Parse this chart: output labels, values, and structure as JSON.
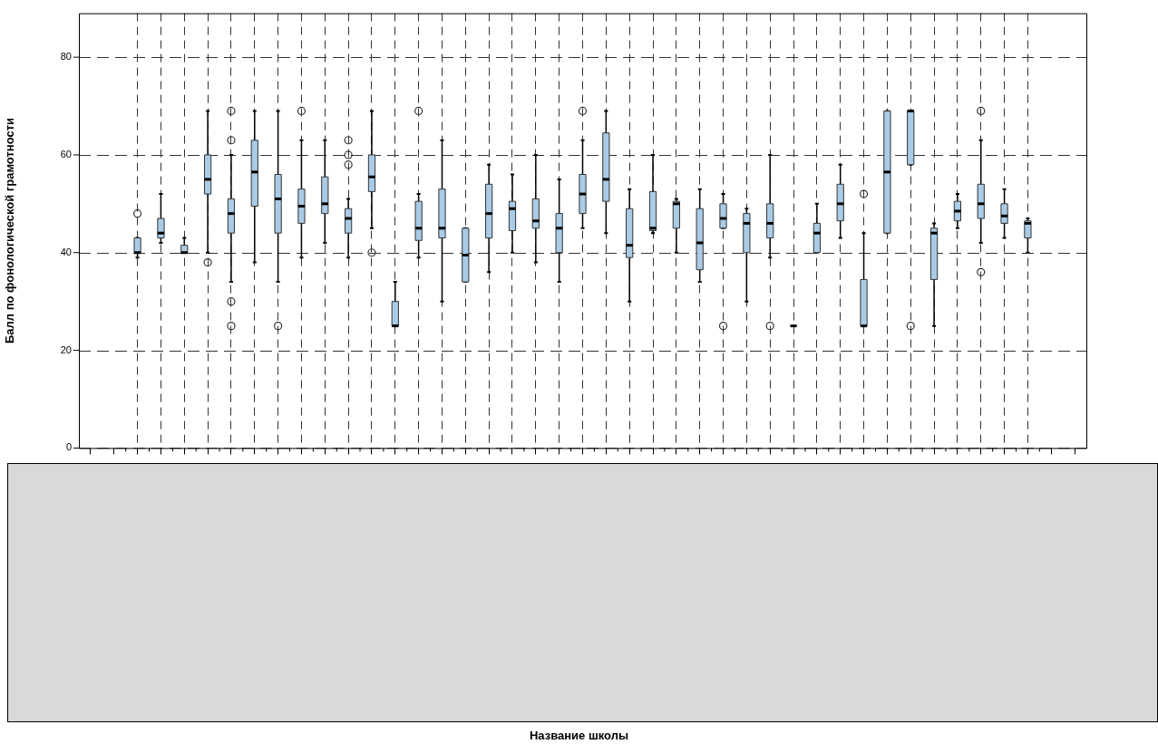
{
  "chart_data": {
    "type": "box",
    "annotations": [
      "Название школы"
    ],
    "ylabel": "Балл по фонологической грамотности",
    "colors": [
      null,
      null,
      "#a9cbe6",
      "#a9cbe6",
      "#a9cbe6",
      "#a9cbe6",
      "#a9cbe6",
      "#a9cbe6",
      "#a9cbe6",
      "#a9cbe6",
      "#a9cbe6",
      "#a9cbe6",
      "#a9cbe6",
      "#a9cbe6",
      "#a9cbe6",
      "#a9cbe6",
      "#a9cbe6",
      "#a9cbe6",
      "#a9cbe6",
      "#a9cbe6",
      "#a9cbe6",
      "#a9cbe6",
      "#a9cbe6",
      "#a9cbe6",
      "#a9cbe6",
      "#a9cbe6",
      "#a9cbe6",
      "#a9cbe6",
      "#a9cbe6",
      "#a9cbe6",
      "#000000",
      "#a9cbe6",
      "#a9cbe6",
      "#a9cbe6",
      "#a9cbe6",
      "#a9cbe6",
      "#a9cbe6",
      "#a9cbe6",
      "#a9cbe6",
      "#a9cbe6",
      "#a9cbe6",
      null,
      null
    ],
    "grid": true,
    "tick_labels": "y",
    "ylim": [
      0,
      89
    ],
    "yticks": [
      0,
      20,
      40,
      60,
      80
    ],
    "categories": [
      null,
      null,
      null,
      null,
      null,
      null,
      null,
      null,
      null,
      null,
      null,
      null,
      null,
      null,
      null,
      null,
      null,
      null,
      null,
      null,
      null,
      null,
      null,
      null,
      null,
      null,
      null,
      null,
      null,
      null,
      null,
      null,
      null,
      null,
      null,
      null,
      null,
      null,
      null,
      null,
      null,
      null,
      null
    ],
    "boxes": [
      null,
      null,
      {
        "low": 39,
        "q1": 40,
        "median": 40,
        "q3": 43,
        "high": 43,
        "outliers": [
          48
        ]
      },
      {
        "low": 42,
        "q1": 43,
        "median": 44,
        "q3": 47,
        "high": 52
      },
      {
        "low": 40,
        "q1": 40,
        "median": 40,
        "q3": 41.5,
        "high": 43
      },
      {
        "low": 40,
        "q1": 52,
        "median": 55,
        "q3": 60,
        "high": 69,
        "outliers": [
          38
        ]
      },
      {
        "low": 34,
        "q1": 44,
        "median": 48,
        "q3": 51,
        "high": 60,
        "outliers": [
          69,
          63,
          30,
          25
        ]
      },
      {
        "low": 38,
        "q1": 49.5,
        "median": 56.5,
        "q3": 63,
        "high": 69
      },
      {
        "low": 34,
        "q1": 44,
        "median": 51,
        "q3": 56,
        "high": 69,
        "outliers": [
          25
        ]
      },
      {
        "low": 39,
        "q1": 46,
        "median": 49.5,
        "q3": 53,
        "high": 63,
        "outliers": [
          69
        ]
      },
      {
        "low": 42,
        "q1": 48,
        "median": 50,
        "q3": 55.5,
        "high": 63
      },
      {
        "low": 39,
        "q1": 44,
        "median": 47,
        "q3": 49,
        "high": 51,
        "outliers": [
          63,
          60,
          58
        ]
      },
      {
        "low": 45,
        "q1": 52.5,
        "median": 55.5,
        "q3": 60,
        "high": 69,
        "outliers": [
          40
        ]
      },
      {
        "low": 25,
        "q1": 25,
        "median": 25,
        "q3": 30,
        "high": 34
      },
      {
        "low": 39,
        "q1": 42.5,
        "median": 45,
        "q3": 50.5,
        "high": 52,
        "outliers": [
          69
        ]
      },
      {
        "low": 30,
        "q1": 43,
        "median": 45,
        "q3": 53,
        "high": 63
      },
      {
        "low": 34,
        "q1": 34,
        "median": 39.5,
        "q3": 45,
        "high": 45
      },
      {
        "low": 36,
        "q1": 43,
        "median": 48,
        "q3": 54,
        "high": 58
      },
      {
        "low": 40,
        "q1": 44.5,
        "median": 49,
        "q3": 50.5,
        "high": 56
      },
      {
        "low": 38,
        "q1": 45,
        "median": 46.5,
        "q3": 51,
        "high": 60
      },
      {
        "low": 34,
        "q1": 40,
        "median": 45,
        "q3": 48,
        "high": 55
      },
      {
        "low": 45,
        "q1": 48,
        "median": 52,
        "q3": 56,
        "high": 63,
        "outliers": [
          69
        ]
      },
      {
        "low": 44,
        "q1": 50.5,
        "median": 55,
        "q3": 64.5,
        "high": 69
      },
      {
        "low": 30,
        "q1": 39,
        "median": 41.5,
        "q3": 49,
        "high": 53
      },
      {
        "low": 44,
        "q1": 44.5,
        "median": 45,
        "q3": 52.5,
        "high": 60
      },
      {
        "low": 40,
        "q1": 45,
        "median": 50,
        "q3": 50.5,
        "high": 51
      },
      {
        "low": 34,
        "q1": 36.5,
        "median": 42,
        "q3": 49,
        "high": 53
      },
      {
        "low": 45,
        "q1": 45,
        "median": 47,
        "q3": 50,
        "high": 52,
        "outliers": [
          25
        ]
      },
      {
        "low": 30,
        "q1": 40,
        "median": 46,
        "q3": 48,
        "high": 49
      },
      {
        "low": 39,
        "q1": 43,
        "median": 46,
        "q3": 50,
        "high": 60,
        "outliers": [
          25
        ]
      },
      {
        "low": 25,
        "q1": 25,
        "median": 25,
        "q3": 25,
        "high": 25
      },
      {
        "low": 40,
        "q1": 40,
        "median": 44,
        "q3": 46,
        "high": 50
      },
      {
        "low": 43,
        "q1": 46.5,
        "median": 50,
        "q3": 54,
        "high": 58
      },
      {
        "low": 25,
        "q1": 25,
        "median": 25,
        "q3": 34.5,
        "high": 44,
        "outliers": [
          52
        ]
      },
      {
        "low": 44,
        "q1": 44,
        "median": 56.5,
        "q3": 69,
        "high": 69
      },
      {
        "low": 58,
        "q1": 58,
        "median": 69,
        "q3": 69,
        "high": 69,
        "outliers": [
          25
        ]
      },
      {
        "low": 25,
        "q1": 34.5,
        "median": 44,
        "q3": 45,
        "high": 46
      },
      {
        "low": 45,
        "q1": 46.5,
        "median": 48.5,
        "q3": 50.5,
        "high": 52
      },
      {
        "low": 42,
        "q1": 47,
        "median": 50,
        "q3": 54,
        "high": 63,
        "outliers": [
          69,
          36
        ]
      },
      {
        "low": 43,
        "q1": 46,
        "median": 47.5,
        "q3": 50,
        "high": 53
      },
      {
        "low": 40,
        "q1": 43,
        "median": 46,
        "q3": 46.5,
        "high": 47
      },
      null,
      null
    ]
  }
}
